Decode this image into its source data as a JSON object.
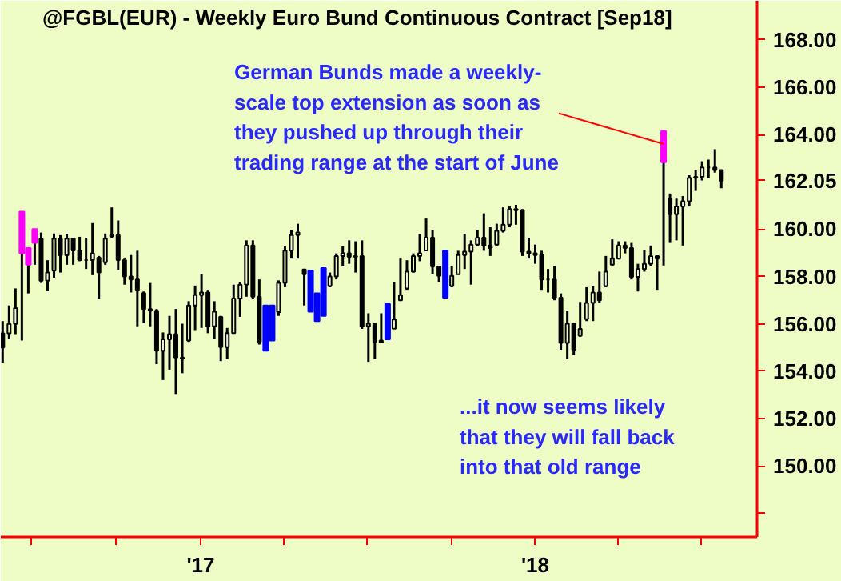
{
  "chart_data": {
    "type": "candlestick",
    "title": "@FGBL(EUR) - Weekly  Euro Bund Continuous Contract [Sep18]",
    "x": [
      "2016-05-30",
      "2016-06-06",
      "2016-06-13",
      "2016-06-20",
      "2016-06-27",
      "2016-07-04",
      "2016-07-11",
      "2016-07-18",
      "2016-07-25",
      "2016-08-01",
      "2016-08-08",
      "2016-08-15",
      "2016-08-22",
      "2016-08-29",
      "2016-09-05",
      "2016-09-12",
      "2016-09-19",
      "2016-09-26",
      "2016-10-03",
      "2016-10-10",
      "2016-10-17",
      "2016-10-24",
      "2016-10-31",
      "2016-11-07",
      "2016-11-14",
      "2016-11-21",
      "2016-11-28",
      "2016-12-05",
      "2016-12-12",
      "2016-12-19",
      "2016-12-26",
      "2017-01-02",
      "2017-01-09",
      "2017-01-16",
      "2017-01-23",
      "2017-01-30",
      "2017-02-06",
      "2017-02-13",
      "2017-02-20",
      "2017-02-27",
      "2017-03-06",
      "2017-03-13",
      "2017-03-20",
      "2017-03-27",
      "2017-04-03",
      "2017-04-10",
      "2017-04-17",
      "2017-04-24",
      "2017-05-01",
      "2017-05-08",
      "2017-05-15",
      "2017-05-22",
      "2017-05-29",
      "2017-06-05",
      "2017-06-12",
      "2017-06-19",
      "2017-06-26",
      "2017-07-03",
      "2017-07-10",
      "2017-07-17",
      "2017-07-24",
      "2017-07-31",
      "2017-08-07",
      "2017-08-14",
      "2017-08-21",
      "2017-08-28",
      "2017-09-04",
      "2017-09-11",
      "2017-09-18",
      "2017-09-25",
      "2017-10-02",
      "2017-10-09",
      "2017-10-16",
      "2017-10-23",
      "2017-10-30",
      "2017-11-06",
      "2017-11-13",
      "2017-11-20",
      "2017-11-27",
      "2017-12-04",
      "2017-12-11",
      "2017-12-18",
      "2017-12-25",
      "2018-01-01",
      "2018-01-08",
      "2018-01-15",
      "2018-01-22",
      "2018-01-29",
      "2018-02-05",
      "2018-02-12",
      "2018-02-19",
      "2018-02-26",
      "2018-03-05",
      "2018-03-12",
      "2018-03-19",
      "2018-03-26",
      "2018-04-02",
      "2018-04-09",
      "2018-04-16",
      "2018-04-23",
      "2018-04-30",
      "2018-05-07",
      "2018-05-14",
      "2018-05-21",
      "2018-05-28",
      "2018-06-04",
      "2018-06-11",
      "2018-06-18",
      "2018-06-25",
      "2018-07-02",
      "2018-07-09",
      "2018-07-16",
      "2018-07-23"
    ],
    "ohlc": [
      [
        155.6,
        156.12,
        154.36,
        155.0
      ],
      [
        155.6,
        156.78,
        155.35,
        156.0
      ],
      [
        156.0,
        157.5,
        155.57,
        156.67
      ],
      [
        160.74,
        160.74,
        155.3,
        158.98
      ],
      [
        159.2,
        159.2,
        157.29,
        158.5
      ],
      [
        160.01,
        160.01,
        158.5,
        159.42
      ],
      [
        159.6,
        159.86,
        157.73,
        157.83
      ],
      [
        157.83,
        158.69,
        157.4,
        158.17
      ],
      [
        158.25,
        159.82,
        157.95,
        159.6
      ],
      [
        159.6,
        159.75,
        158.17,
        158.9
      ],
      [
        158.9,
        159.8,
        158.5,
        159.6
      ],
      [
        159.6,
        159.64,
        158.5,
        159.1
      ],
      [
        159.1,
        159.68,
        158.65,
        158.7
      ],
      [
        158.7,
        159.64,
        158.32,
        158.7
      ],
      [
        158.7,
        160.26,
        158.06,
        158.98
      ],
      [
        158.8,
        158.87,
        157.07,
        158.17
      ],
      [
        158.6,
        159.82,
        158.5,
        159.6
      ],
      [
        159.7,
        160.92,
        159.64,
        159.75
      ],
      [
        159.75,
        160.37,
        158.28,
        158.7
      ],
      [
        158.7,
        158.76,
        157.66,
        158.0
      ],
      [
        158.0,
        158.91,
        157.33,
        157.88
      ],
      [
        157.88,
        159.09,
        155.9,
        157.44
      ],
      [
        157.3,
        157.37,
        156.05,
        156.63
      ],
      [
        156.63,
        157.73,
        155.9,
        156.56
      ],
      [
        156.56,
        156.63,
        154.3,
        154.87
      ],
      [
        154.87,
        155.64,
        153.63,
        155.35
      ],
      [
        155.35,
        156.34,
        154.07,
        155.57
      ],
      [
        155.57,
        156.63,
        153.04,
        154.58
      ],
      [
        154.58,
        156.01,
        153.92,
        154.53
      ],
      [
        155.3,
        156.96,
        155.24,
        156.78
      ],
      [
        156.78,
        157.62,
        155.74,
        157.22
      ],
      [
        157.22,
        158.1,
        155.83,
        157.33
      ],
      [
        157.33,
        157.44,
        155.61,
        155.9
      ],
      [
        155.9,
        156.96,
        155.35,
        156.52
      ],
      [
        156.3,
        156.34,
        154.43,
        155.02
      ],
      [
        155.02,
        155.83,
        154.51,
        155.61
      ],
      [
        155.61,
        157.66,
        155.61,
        157.07
      ],
      [
        157.07,
        157.77,
        156.3,
        157.66
      ],
      [
        157.66,
        159.53,
        157.15,
        159.31
      ],
      [
        159.31,
        159.53,
        157.07,
        157.15
      ],
      [
        157.15,
        157.88,
        155.13,
        155.24
      ],
      [
        156.78,
        156.78,
        154.87,
        154.87
      ],
      [
        156.78,
        156.78,
        155.3,
        155.3
      ],
      [
        156.5,
        157.84,
        156.34,
        157.73
      ],
      [
        157.73,
        159.27,
        157.55,
        159.09
      ],
      [
        159.09,
        159.97,
        158.76,
        159.75
      ],
      [
        159.75,
        160.23,
        158.76,
        159.86
      ],
      [
        158.3,
        158.32,
        156.78,
        158.1
      ],
      [
        158.25,
        158.25,
        156.52,
        156.52
      ],
      [
        157.29,
        157.29,
        156.12,
        156.12
      ],
      [
        158.36,
        158.36,
        156.34,
        156.34
      ],
      [
        157.6,
        158.17,
        157.55,
        158.0
      ],
      [
        158.0,
        158.98,
        157.88,
        158.87
      ],
      [
        158.87,
        159.27,
        158.43,
        158.98
      ],
      [
        158.98,
        159.53,
        158.54,
        158.83
      ],
      [
        158.83,
        159.49,
        158.17,
        158.87
      ],
      [
        158.87,
        159.53,
        155.79,
        155.9
      ],
      [
        155.9,
        156.45,
        154.4,
        156.01
      ],
      [
        156.01,
        156.01,
        154.51,
        155.24
      ],
      [
        155.24,
        156.45,
        155.24,
        155.3
      ],
      [
        156.85,
        156.85,
        155.35,
        155.35
      ],
      [
        155.8,
        157.77,
        155.79,
        156.19
      ],
      [
        157.0,
        158.76,
        157.0,
        157.22
      ],
      [
        157.5,
        158.69,
        157.44,
        158.21
      ],
      [
        158.21,
        158.98,
        158.17,
        158.87
      ],
      [
        158.87,
        159.8,
        158.65,
        158.98
      ],
      [
        159.1,
        160.45,
        159.09,
        159.64
      ],
      [
        159.64,
        159.97,
        158.1,
        158.43
      ],
      [
        158.43,
        158.43,
        157.77,
        158.03
      ],
      [
        159.09,
        159.09,
        157.11,
        157.11
      ],
      [
        157.6,
        158.43,
        157.55,
        158.03
      ],
      [
        158.1,
        159.09,
        158.1,
        158.91
      ],
      [
        158.91,
        159.8,
        158.32,
        159.05
      ],
      [
        159.05,
        159.53,
        157.66,
        159.35
      ],
      [
        159.35,
        159.97,
        159.31,
        159.64
      ],
      [
        159.64,
        160.67,
        159.09,
        159.31
      ],
      [
        159.31,
        160.08,
        158.87,
        159.2
      ],
      [
        159.35,
        160.23,
        159.31,
        159.93
      ],
      [
        159.93,
        160.92,
        159.86,
        160.19
      ],
      [
        160.19,
        160.96,
        160.08,
        160.85
      ],
      [
        160.85,
        161.03,
        160.19,
        160.8
      ],
      [
        160.8,
        160.85,
        158.87,
        159.05
      ],
      [
        159.05,
        159.64,
        158.76,
        158.98
      ],
      [
        158.98,
        159.35,
        158.54,
        158.91
      ],
      [
        158.91,
        159.09,
        157.44,
        157.88
      ],
      [
        157.88,
        158.32,
        157.33,
        157.88
      ],
      [
        157.88,
        158.43,
        157.0,
        157.11
      ],
      [
        157.11,
        157.29,
        154.91,
        155.2
      ],
      [
        155.2,
        156.56,
        154.51,
        156.01
      ],
      [
        156.01,
        156.01,
        154.69,
        154.91
      ],
      [
        155.5,
        156.93,
        155.46,
        155.79
      ],
      [
        156.2,
        157.55,
        156.12,
        156.89
      ],
      [
        156.89,
        157.59,
        156.12,
        157.33
      ],
      [
        157.33,
        158.21,
        156.89,
        157.0
      ],
      [
        157.6,
        158.87,
        157.55,
        158.21
      ],
      [
        158.5,
        159.57,
        158.47,
        158.76
      ],
      [
        158.76,
        159.49,
        158.76,
        159.31
      ],
      [
        159.31,
        159.49,
        158.98,
        159.2
      ],
      [
        159.2,
        159.42,
        157.88,
        157.99
      ],
      [
        157.99,
        158.54,
        157.37,
        158.32
      ],
      [
        158.32,
        159.13,
        158.21,
        158.54
      ],
      [
        158.54,
        159.31,
        158.43,
        158.87
      ],
      [
        158.87,
        158.87,
        157.44,
        158.76
      ],
      [
        164.15,
        164.15,
        158.47,
        162.83
      ],
      [
        161.3,
        161.51,
        159.42,
        160.63
      ],
      [
        160.63,
        161.29,
        159.53,
        160.96
      ],
      [
        160.96,
        161.4,
        159.31,
        161.18
      ],
      [
        161.18,
        162.28,
        160.96,
        162.17
      ],
      [
        162.17,
        162.5,
        161.62,
        162.21
      ],
      [
        162.21,
        162.87,
        162.06,
        162.61
      ],
      [
        162.61,
        162.94,
        162.17,
        162.61
      ],
      [
        162.61,
        163.38,
        162.39,
        162.5
      ],
      [
        162.5,
        162.5,
        161.73,
        162.05
      ]
    ],
    "colors": [
      "#000000",
      "#000000",
      "#000000",
      "#ff00ff",
      "#ff00ff",
      "#ff00ff",
      "#000000",
      "#000000",
      "#000000",
      "#000000",
      "#000000",
      "#000000",
      "#000000",
      "#000000",
      "#000000",
      "#000000",
      "#000000",
      "#000000",
      "#000000",
      "#000000",
      "#000000",
      "#000000",
      "#000000",
      "#000000",
      "#000000",
      "#000000",
      "#000000",
      "#000000",
      "#000000",
      "#000000",
      "#000000",
      "#000000",
      "#000000",
      "#000000",
      "#000000",
      "#000000",
      "#000000",
      "#000000",
      "#000000",
      "#000000",
      "#000000",
      "#0000ff",
      "#0000ff",
      "#000000",
      "#000000",
      "#000000",
      "#000000",
      "#000000",
      "#0000ff",
      "#0000ff",
      "#0000ff",
      "#000000",
      "#000000",
      "#000000",
      "#000000",
      "#000000",
      "#000000",
      "#000000",
      "#000000",
      "#000000",
      "#0000ff",
      "#000000",
      "#000000",
      "#000000",
      "#000000",
      "#000000",
      "#000000",
      "#000000",
      "#000000",
      "#0000ff",
      "#000000",
      "#000000",
      "#000000",
      "#000000",
      "#000000",
      "#000000",
      "#000000",
      "#000000",
      "#000000",
      "#000000",
      "#000000",
      "#000000",
      "#000000",
      "#000000",
      "#000000",
      "#000000",
      "#000000",
      "#000000",
      "#000000",
      "#000000",
      "#000000",
      "#000000",
      "#000000",
      "#000000",
      "#000000",
      "#000000",
      "#000000",
      "#000000",
      "#000000",
      "#000000",
      "#000000",
      "#000000",
      "#000000",
      "#ff00ff",
      "#000000",
      "#000000",
      "#000000",
      "#000000",
      "#000000",
      "#000000",
      "#000000",
      "#000000",
      "#000000"
    ],
    "xlim": [
      "2016-05-28",
      "2018-08-31"
    ],
    "xticks": [
      {
        "value": "2016-07-01",
        "label": null
      },
      {
        "value": "2016-10-01",
        "label": null
      },
      {
        "value": "2017-01-01",
        "label": "'17"
      },
      {
        "value": "2017-04-01",
        "label": null
      },
      {
        "value": "2017-07-01",
        "label": null
      },
      {
        "value": "2017-10-01",
        "label": null
      },
      {
        "value": "2018-01-01",
        "label": "'18"
      },
      {
        "value": "2018-04-01",
        "label": null
      },
      {
        "value": "2018-07-01",
        "label": null
      }
    ],
    "ylim": [
      147.0,
      169.65
    ],
    "yticks": [
      {
        "value": 148,
        "label": null
      },
      {
        "value": 150,
        "label": "150.00"
      },
      {
        "value": 152,
        "label": "152.00"
      },
      {
        "value": 154,
        "label": "154.00"
      },
      {
        "value": 156,
        "label": "156.00"
      },
      {
        "value": 158,
        "label": "158.00"
      },
      {
        "value": 160,
        "label": "160.00"
      },
      {
        "value": 162.05,
        "label": "162.05"
      },
      {
        "value": 164,
        "label": "164.00"
      },
      {
        "value": 166,
        "label": "166.00"
      },
      {
        "value": 168,
        "label": "168.00"
      }
    ],
    "annotations": [
      {
        "text": "German Bunds made a weekly-\nscale top extension as soon as\nthey pushed up through their\ntrading range at the start of June",
        "x": "2018-05-21",
        "y": 163.6
      },
      "...it now seems likely\nthat they will fall back\ninto that old range"
    ]
  }
}
